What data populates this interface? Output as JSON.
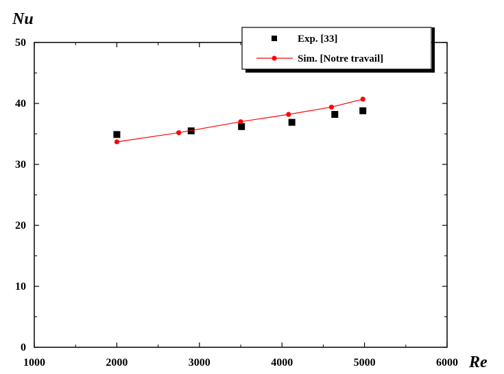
{
  "chart_data": {
    "type": "scatter",
    "title": "",
    "xlabel": "Re",
    "ylabel": "Nu",
    "xlim": [
      1000,
      6000
    ],
    "ylim": [
      0,
      50
    ],
    "x_ticks": [
      1000,
      2000,
      3000,
      4000,
      5000,
      6000
    ],
    "y_ticks": [
      0,
      10,
      20,
      30,
      40,
      50
    ],
    "grid": false,
    "legend_position": "top-right",
    "series": [
      {
        "name": "Exp. [33]",
        "marker": "square",
        "line": false,
        "color": "#000000",
        "x": [
          2000,
          2900,
          3510,
          4120,
          4640,
          4980
        ],
        "y": [
          34.9,
          35.5,
          36.2,
          36.9,
          38.2,
          38.8
        ]
      },
      {
        "name": "Sim. [Notre travail]",
        "marker": "circle",
        "line": true,
        "color": "#ff0000",
        "x": [
          2000,
          2750,
          3500,
          4080,
          4600,
          4980
        ],
        "y": [
          33.7,
          35.2,
          37.0,
          38.2,
          39.4,
          40.7
        ]
      }
    ]
  }
}
